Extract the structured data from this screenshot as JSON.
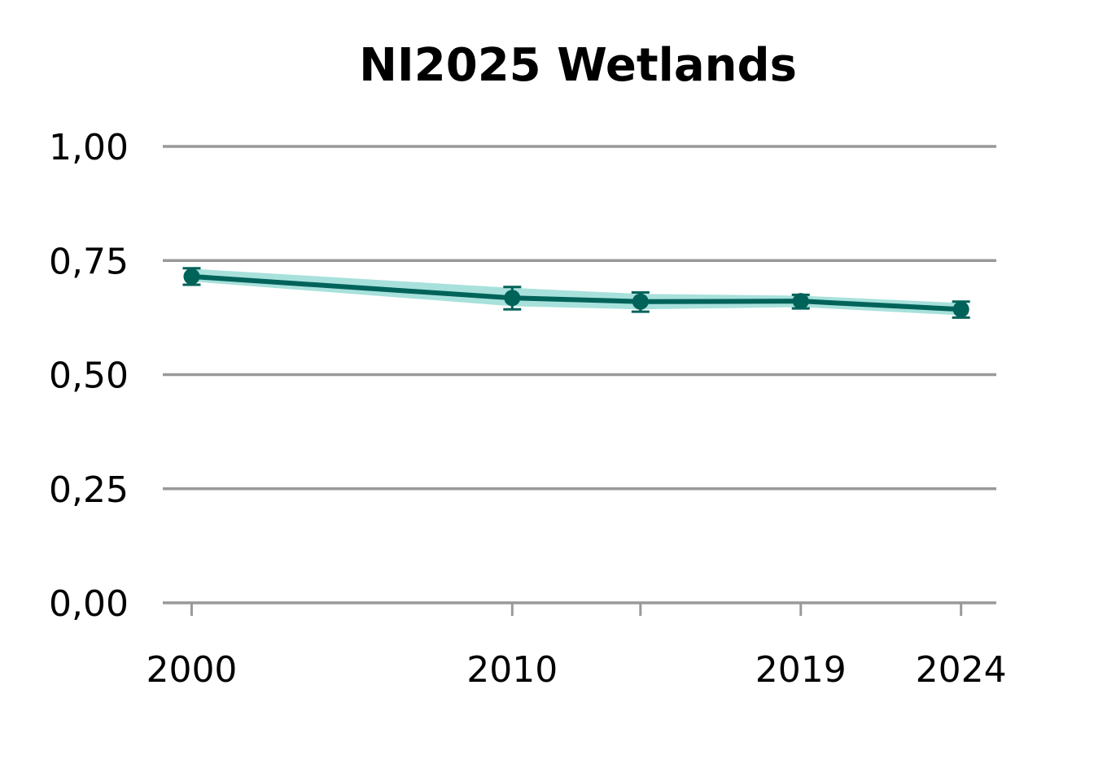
{
  "chart_data": {
    "type": "line",
    "title": "NI2025 Wetlands",
    "xlabel": "",
    "ylabel": "",
    "xlim": [
      1999.1,
      2025.1
    ],
    "ylim": [
      0,
      1
    ],
    "y_ticks": [
      {
        "value": 0.0,
        "label": "0,00"
      },
      {
        "value": 0.25,
        "label": "0,25"
      },
      {
        "value": 0.5,
        "label": "0,50"
      },
      {
        "value": 0.75,
        "label": "0,75"
      },
      {
        "value": 1.0,
        "label": "1,00"
      }
    ],
    "x_ticks": [
      {
        "value": 2000,
        "label": "2000"
      },
      {
        "value": 2010,
        "label": "2010"
      },
      {
        "value": 2014,
        "label": ""
      },
      {
        "value": 2019,
        "label": "2019"
      },
      {
        "value": 2024,
        "label": "2024"
      }
    ],
    "grid": true,
    "series": [
      {
        "name": "NI2025 Wetlands",
        "x": [
          2000,
          2010,
          2014,
          2019,
          2024
        ],
        "values": [
          0.715,
          0.668,
          0.66,
          0.661,
          0.643
        ],
        "lower": [
          0.697,
          0.643,
          0.638,
          0.645,
          0.625
        ],
        "upper": [
          0.733,
          0.692,
          0.68,
          0.675,
          0.66
        ],
        "band_lower": [
          0.704,
          0.65,
          0.643,
          0.648,
          0.63
        ],
        "band_upper": [
          0.732,
          0.69,
          0.677,
          0.673,
          0.657
        ]
      }
    ],
    "colors": {
      "line": "#00635a",
      "band": "#a8e1dc",
      "grid": "#999999",
      "text": "#000000"
    }
  }
}
